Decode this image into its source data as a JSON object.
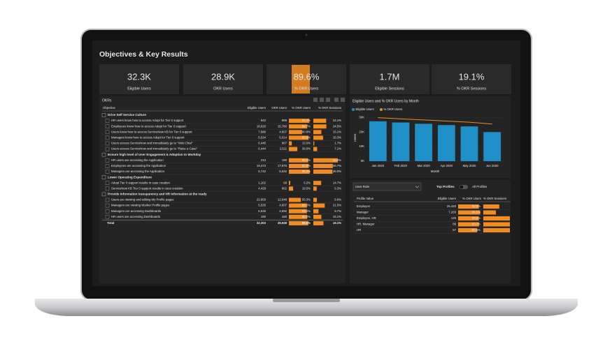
{
  "header": {
    "title": "Objectives & Key Results"
  },
  "kpis": [
    {
      "value": "32.3K",
      "label": "Eligible Users"
    },
    {
      "value": "28.9K",
      "label": "OKR Users"
    },
    {
      "value": "89.6%",
      "label": "% OKR Users"
    },
    {
      "value": "1.7M",
      "label": "Eligible Sessions"
    },
    {
      "value": "19.1%",
      "label": "% OKR Sessions"
    }
  ],
  "okr_table": {
    "title": "OKRs",
    "columns": [
      "Objective",
      "Eligible Users",
      "OKR Users",
      "% OKR Users",
      "% OKR Sessions"
    ],
    "groups": [
      {
        "label": "Drive Self Service Culture",
        "rows": [
          [
            "HR users know how to access Adopt for Tier 0 support",
            "942",
            "889",
            "94.4%",
            "24.1%"
          ],
          [
            "Employees know how to access Adopt for Tier 0 support",
            "18,620",
            "15,780",
            "84.7%",
            "24.5%"
          ],
          [
            "Users know how to access ServiceNow KB for Tier 0 support",
            "7,580",
            "4,607",
            "60.8%",
            "15.1%"
          ],
          [
            "Managers know how to access Adopt for Tier 0 support",
            "5,534",
            "5,014",
            "90.6%",
            "18.3%"
          ],
          [
            "Users access ServiceNow and immediately go to \"Web Chat\"",
            "6,445",
            "867",
            "13.5%",
            "1.7%"
          ],
          [
            "Users access ServiceNow and immediately go to \"Raise a Case\"",
            "6,444",
            "2,511",
            "39.0%",
            "7.1%"
          ]
        ]
      },
      {
        "label": "Ensure high level of User Engagement & Adoption to Workday",
        "rows": [
          [
            "HR users are accessing the Application",
            "213",
            "190",
            "89.2%",
            "45.9%"
          ],
          [
            "Employees are accessing the Application",
            "19,473",
            "17,870",
            "91.8%",
            "36.7%"
          ],
          [
            "Managers are accessing the Application",
            "5,742",
            "5,532",
            "96.3%",
            "36.0%"
          ]
        ]
      },
      {
        "label": "Lower Operating Expenditure",
        "rows": [
          [
            "Adopt Tier 0 support results in case creation",
            "1,102",
            "68",
            "6.2%",
            "14.7%"
          ],
          [
            "ServiceNow KB Tier 0 support results in case creation",
            "4,428",
            "862",
            "19.5%",
            "6.3%"
          ]
        ]
      },
      {
        "label": "Provide information transparency and HR information at the ready",
        "rows": [
          [
            "Users are viewing and editing My Profile pages",
            "22,859",
            "12,648",
            "55.3%",
            "6.6%"
          ],
          [
            "Managers are viewing Worker Profile pages",
            "5,535",
            "4,607",
            "83.2%",
            "21.5%"
          ],
          [
            "Managers are accessing Dashboards",
            "5,535",
            "4,592",
            "83.0%",
            "9.7%"
          ],
          [
            "HR users are accessing Dashboards",
            "190",
            "160",
            "84.2%",
            "15.1%"
          ]
        ]
      }
    ],
    "total": [
      "Total",
      "32,303",
      "28,948",
      "89.6%",
      "19.1%"
    ]
  },
  "chart_data": {
    "type": "bar",
    "title": "Eligible Users and % OKR Users by Month",
    "x_label": "Month",
    "y_label": "Users",
    "categories": [
      "Jan 2020",
      "Feb 2020",
      "Mar 2020",
      "Apr 2020",
      "May 2020",
      "Jun 2020"
    ],
    "series": [
      {
        "name": "Eligible Users",
        "color": "#1f8fc8",
        "values": [
          27300,
          26500,
          25600,
          24700,
          23800,
          19900
        ]
      },
      {
        "name": "% OKR Users",
        "type": "line",
        "axis": "y2",
        "color": "#f28c1e",
        "values": [
          93.5,
          92.6,
          91.8,
          90.9,
          90.0,
          88.6
        ]
      }
    ],
    "ylim": [
      0,
      32000
    ],
    "yticks": [
      {
        "value": 0,
        "label": "0K"
      },
      {
        "value": 10000,
        "label": "10K"
      },
      {
        "value": 20000,
        "label": "20K"
      },
      {
        "value": 30000,
        "label": "30K"
      }
    ],
    "y2lim": [
      60,
      96
    ]
  },
  "profiles": {
    "slicer": "User Role",
    "toggle_left": "Top Profiles",
    "toggle_right": "All Profiles",
    "columns": [
      "Profile Value",
      "Eligible Users",
      "% OKR Users",
      "% OKR Sessions"
    ],
    "rows": [
      {
        "profile": "Employee",
        "eligible": "25,420",
        "pct_users": "89.9%",
        "pct_sessions": 24
      },
      {
        "profile": "Manager",
        "eligible": "7,283",
        "pct_users": "95.5%",
        "pct_sessions": 19
      },
      {
        "profile": "Employee, HR",
        "eligible": "125",
        "pct_users": "89.6%",
        "pct_sessions": 40
      },
      {
        "profile": "HR, Manager",
        "eligible": "86",
        "pct_users": "90.7%",
        "pct_sessions": 40
      },
      {
        "profile": "HR",
        "eligible": "57",
        "pct_users": "82.5%",
        "pct_sessions": 40
      }
    ]
  }
}
